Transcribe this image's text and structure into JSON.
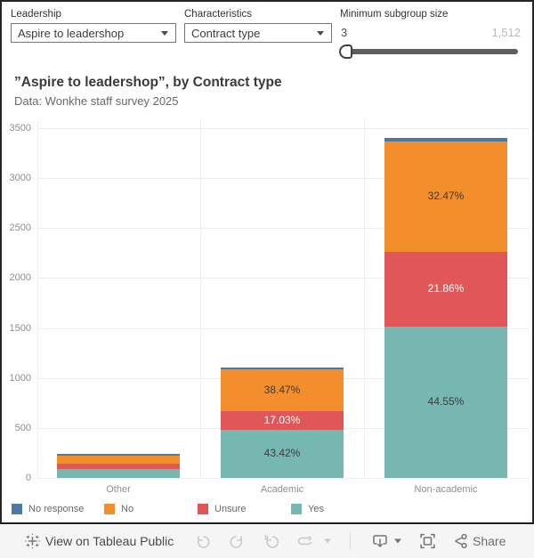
{
  "controls": {
    "leadership": {
      "label": "Leadership",
      "value": "Aspire to leadershop"
    },
    "characteristics": {
      "label": "Characteristics",
      "value": "Contract type"
    },
    "min_subgroup": {
      "label": "Minimum subgroup size",
      "min": "3",
      "max": "1,512"
    }
  },
  "header": {
    "title": "”Aspire to leadershop”, by Contract type",
    "subtitle": "Data: Wonkhe staff survey 2025"
  },
  "chart_data": {
    "type": "bar",
    "subtype": "stacked",
    "title": "”Aspire to leadershop”, by Contract type",
    "categories": [
      "Other",
      "Academic",
      "Non-academic"
    ],
    "series": [
      {
        "name": "Yes",
        "color": "#76b7b2",
        "label_color": "#3b3b3b",
        "values": [
          90,
          478,
          1515
        ],
        "labels": [
          "",
          "43.42%",
          "44.55%"
        ]
      },
      {
        "name": "Unsure",
        "color": "#e15759",
        "label_color": "#ffffff",
        "values": [
          55,
          187,
          743
        ],
        "labels": [
          "",
          "17.03%",
          "21.86%"
        ]
      },
      {
        "name": "No",
        "color": "#f28e2b",
        "label_color": "#3b3b3b",
        "values": [
          80,
          423,
          1104
        ],
        "labels": [
          "",
          "38.47%",
          "32.47%"
        ]
      },
      {
        "name": "No response",
        "color": "#4e79a7",
        "label_color": "#ffffff",
        "values": [
          13,
          12,
          38
        ],
        "labels": [
          "",
          "",
          ""
        ]
      }
    ],
    "totals_approx": [
      238,
      1100,
      3400
    ],
    "ylim": [
      0,
      3500
    ],
    "yticks": [
      0,
      500,
      1000,
      1500,
      2000,
      2500,
      3000,
      3500
    ],
    "xlabel": "",
    "ylabel": "",
    "grid": true,
    "legend_position": "bottom",
    "legend_order": [
      "No response",
      "No",
      "Unsure",
      "Yes"
    ]
  },
  "legend": {
    "items": [
      {
        "label": "No response",
        "color": "#4e79a7"
      },
      {
        "label": "No",
        "color": "#f28e2b"
      },
      {
        "label": "Unsure",
        "color": "#e15759"
      },
      {
        "label": "Yes",
        "color": "#76b7b2"
      }
    ]
  },
  "toolbar": {
    "view_on_label": "View on Tableau Public",
    "share_label": "Share",
    "icons": [
      "tableau-logo",
      "undo",
      "redo",
      "revert-all",
      "refresh-data",
      "caret-down",
      "download",
      "caret-down",
      "fullscreen",
      "share"
    ]
  },
  "colors": {
    "blue": "#4e79a7",
    "orange": "#f28e2b",
    "red": "#e15759",
    "teal": "#76b7b2",
    "viz_border": "#262626",
    "toolbar_bg": "#f5f5f5",
    "grid": "#ececec"
  }
}
